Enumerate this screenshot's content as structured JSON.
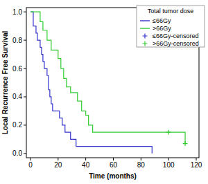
{
  "chart_data": {
    "type": "step",
    "xlabel": "Time (months)",
    "ylabel": "Local Recurrence Free Survival",
    "legend_title": "Total tumor dose",
    "legend": "upper right",
    "xlim": [
      -3,
      122
    ],
    "ylim": [
      -0.03,
      1.03
    ],
    "xticks": [
      0,
      20,
      40,
      60,
      80,
      100,
      120
    ],
    "yticks": [
      {
        "value": 0,
        "label": "0.0"
      },
      {
        "value": 0.2,
        "label": "0.2"
      },
      {
        "value": 0.4,
        "label": "0.4"
      },
      {
        "value": 0.6,
        "label": "0.6"
      },
      {
        "value": 0.8,
        "label": "0.8"
      },
      {
        "value": 1,
        "label": "1.0"
      }
    ],
    "series": [
      {
        "name": "≤66Gy",
        "type": "step",
        "color": "#3333cc",
        "x": [
          0,
          2,
          4,
          5,
          7,
          8,
          9,
          10,
          12,
          13,
          14,
          15,
          16,
          21,
          23,
          25,
          29,
          33,
          88
        ],
        "values": [
          1.0,
          0.9,
          0.85,
          0.8,
          0.75,
          0.7,
          0.65,
          0.6,
          0.55,
          0.45,
          0.4,
          0.35,
          0.3,
          0.25,
          0.2,
          0.15,
          0.1,
          0.05,
          0.0
        ]
      },
      {
        "name": ">66Gy",
        "type": "step",
        "color": "#33cc33",
        "x": [
          0,
          7,
          9,
          12,
          15,
          20,
          22,
          24,
          26,
          29,
          34,
          37,
          40,
          42,
          45,
          112
        ],
        "values": [
          1.0,
          0.93,
          0.87,
          0.8,
          0.73,
          0.67,
          0.6,
          0.53,
          0.47,
          0.43,
          0.37,
          0.3,
          0.27,
          0.2,
          0.15,
          0.07
        ]
      },
      {
        "name": "≤66Gy-censored",
        "type": "scatter",
        "marker": "cross",
        "color": "#3333cc",
        "x": [],
        "values": []
      },
      {
        "name": ">66Gy-censored",
        "type": "scatter",
        "marker": "cross",
        "color": "#33cc33",
        "x": [
          100,
          112
        ],
        "values": [
          0.15,
          0.07
        ]
      }
    ]
  }
}
